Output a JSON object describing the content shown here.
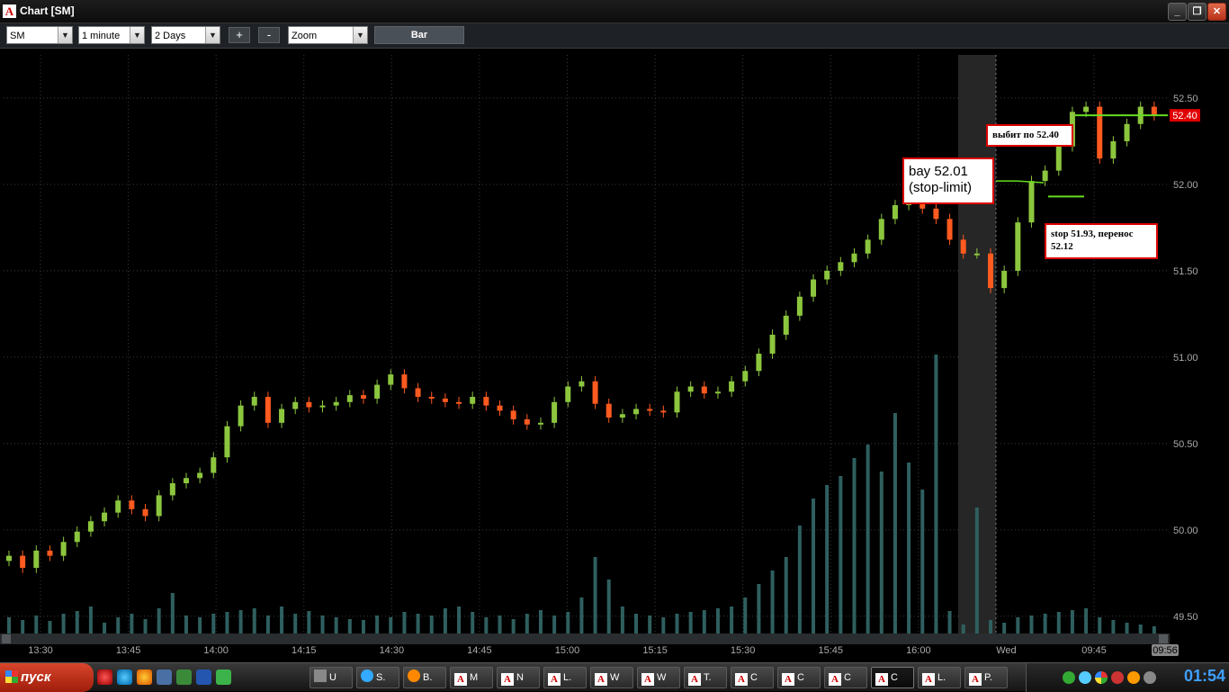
{
  "window": {
    "title": "Chart [SM]",
    "icon_letter": "A",
    "minimize": "_",
    "maximize": "❐",
    "close": "✕"
  },
  "toolbar": {
    "symbol": "SM",
    "interval": "1 minute",
    "range": "2 Days",
    "plus": "+",
    "minus": "-",
    "zoom": "Zoom",
    "chart_type": "Bar"
  },
  "chart_data": {
    "type": "candlestick",
    "symbol": "SM",
    "ylim": [
      49.4,
      52.75
    ],
    "y_ticks": [
      "52.50",
      "52.00",
      "51.50",
      "51.00",
      "50.50",
      "50.00",
      "49.50"
    ],
    "x_ticks": [
      "13:30",
      "13:45",
      "14:00",
      "14:15",
      "14:30",
      "14:45",
      "15:00",
      "15:15",
      "15:30",
      "15:45",
      "16:00",
      "Wed",
      "09:45"
    ],
    "current_price": "52.40",
    "current_time": "09:56",
    "colors": {
      "up": "#8cc63e",
      "down": "#ff5a1f",
      "volume": "#2f5f5f",
      "grid": "#3a3a3a",
      "level": "#66dd22",
      "price_tag": "#e00000"
    },
    "prices": [
      49.85,
      49.78,
      49.88,
      49.85,
      49.93,
      49.99,
      50.05,
      50.1,
      50.17,
      50.12,
      50.08,
      50.2,
      50.27,
      50.3,
      50.33,
      50.42,
      50.6,
      50.72,
      50.77,
      50.62,
      50.7,
      50.74,
      50.71,
      50.72,
      50.74,
      50.78,
      50.76,
      50.84,
      50.9,
      50.82,
      50.77,
      50.76,
      50.74,
      50.73,
      50.77,
      50.72,
      50.69,
      50.64,
      50.61,
      50.62,
      50.74,
      50.83,
      50.86,
      50.73,
      50.65,
      50.67,
      50.7,
      50.69,
      50.68,
      50.8,
      50.83,
      50.79,
      50.8,
      50.86,
      50.92,
      51.02,
      51.13,
      51.24,
      51.35,
      51.45,
      51.5,
      51.55,
      51.6,
      51.68,
      51.8,
      51.88,
      51.9,
      51.86,
      51.8,
      51.68,
      51.6,
      51.6,
      51.4,
      51.5,
      51.78,
      52.02,
      52.08,
      52.22,
      52.42,
      52.45,
      52.15,
      52.25,
      52.35,
      52.45,
      52.4
    ],
    "volumes": [
      18,
      15,
      20,
      14,
      22,
      25,
      30,
      12,
      18,
      22,
      16,
      28,
      45,
      20,
      18,
      22,
      24,
      26,
      28,
      20,
      30,
      22,
      25,
      20,
      18,
      16,
      15,
      20,
      18,
      24,
      22,
      20,
      28,
      30,
      24,
      18,
      20,
      16,
      22,
      26,
      20,
      24,
      40,
      85,
      60,
      30,
      22,
      20,
      18,
      22,
      24,
      26,
      28,
      30,
      40,
      55,
      70,
      85,
      120,
      150,
      165,
      175,
      195,
      210,
      180,
      245,
      190,
      160,
      310,
      25,
      10,
      140,
      15,
      12,
      18,
      20,
      22,
      24,
      26,
      28,
      18,
      15,
      12,
      10,
      8
    ],
    "annotations": [
      {
        "text_lines": [
          "bay 52.01",
          "(stop-limit)"
        ],
        "level": 52.01
      },
      {
        "text_lines": [
          "выбит по 52.40"
        ],
        "level": 52.4
      },
      {
        "text_lines": [
          "stop 51.93, перенос",
          "52.12"
        ],
        "level": 51.93
      }
    ]
  },
  "taskbar": {
    "start_label": "пуск",
    "tasks": [
      "U",
      "S.",
      "B.",
      "M",
      "N",
      "L.",
      "W",
      "W",
      "T.",
      "C",
      "C",
      "C",
      "C",
      "L.",
      "P."
    ],
    "clock": "01:54"
  }
}
